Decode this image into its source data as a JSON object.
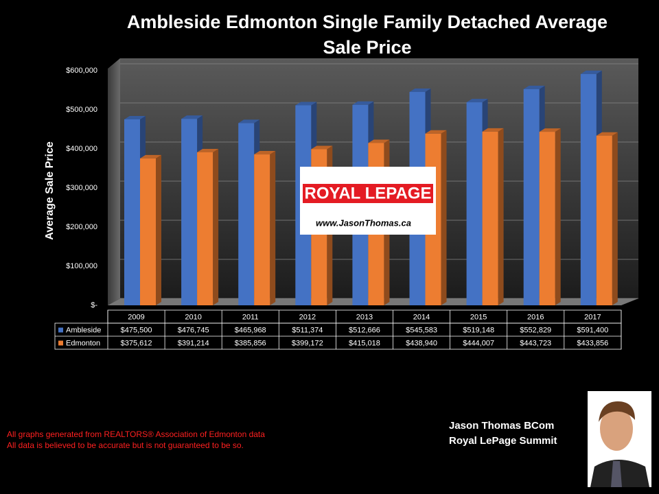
{
  "chart_data": {
    "type": "bar3d",
    "title": "Ambleside Edmonton Single Family Detached Average Sale Price",
    "y_label": "Average Sale Price",
    "categories": [
      "2009",
      "2010",
      "2011",
      "2012",
      "2013",
      "2014",
      "2015",
      "2016",
      "2017"
    ],
    "series": [
      {
        "name": "Ambleside",
        "color": "#4472c4",
        "values": [
          475500,
          476745,
          465968,
          511374,
          512666,
          545583,
          519148,
          552829,
          591400
        ],
        "value_labels": [
          "$475,500",
          "$476,745",
          "$465,968",
          "$511,374",
          "$512,666",
          "$545,583",
          "$519,148",
          "$552,829",
          "$591,400"
        ]
      },
      {
        "name": "Edmonton",
        "color": "#ed7d31",
        "values": [
          375612,
          391214,
          385856,
          399172,
          415018,
          438940,
          444007,
          443723,
          433856
        ],
        "value_labels": [
          "$375,612",
          "$391,214",
          "$385,856",
          "$399,172",
          "$415,018",
          "$438,940",
          "$444,007",
          "$443,723",
          "$433,856"
        ]
      }
    ],
    "ylim": [
      0,
      600000
    ],
    "yticks": [
      {
        "value": 0,
        "label": "$-"
      },
      {
        "value": 100000,
        "label": "$100,000"
      },
      {
        "value": 200000,
        "label": "$200,000"
      },
      {
        "value": 300000,
        "label": "$300,000"
      },
      {
        "value": 400000,
        "label": "$400,000"
      },
      {
        "value": 500000,
        "label": "$500,000"
      },
      {
        "value": 600000,
        "label": "$600,000"
      }
    ],
    "grid": true
  },
  "logo": {
    "brand": "ROYAL LEPAGE",
    "url": "www.JasonThomas.ca"
  },
  "footer": {
    "notes": [
      "All graphs generated from REALTORS® Association of Edmonton data",
      "All data is believed to be accurate but is not guaranteed to be so."
    ],
    "agent": [
      "Jason Thomas BCom",
      "Royal LePage Summit"
    ]
  }
}
